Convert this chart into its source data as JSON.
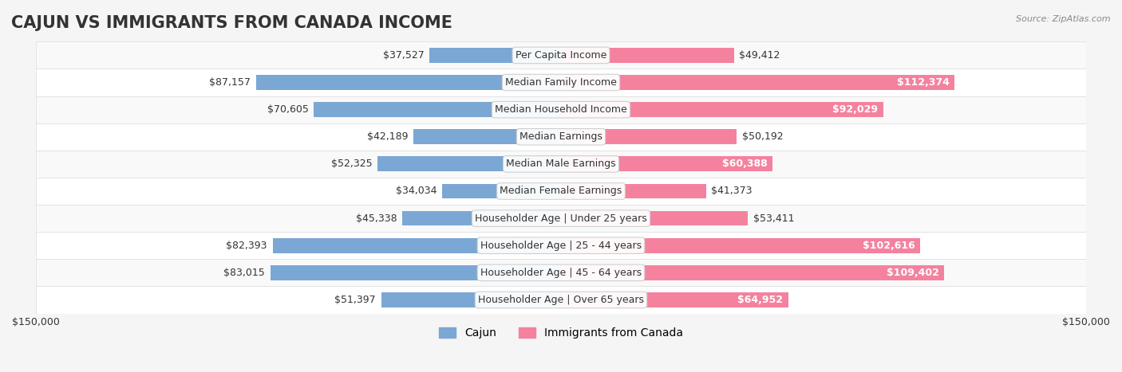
{
  "title": "CAJUN VS IMMIGRANTS FROM CANADA INCOME",
  "source": "Source: ZipAtlas.com",
  "categories": [
    "Per Capita Income",
    "Median Family Income",
    "Median Household Income",
    "Median Earnings",
    "Median Male Earnings",
    "Median Female Earnings",
    "Householder Age | Under 25 years",
    "Householder Age | 25 - 44 years",
    "Householder Age | 45 - 64 years",
    "Householder Age | Over 65 years"
  ],
  "cajun_values": [
    37527,
    87157,
    70605,
    42189,
    52325,
    34034,
    45338,
    82393,
    83015,
    51397
  ],
  "canada_values": [
    49412,
    112374,
    92029,
    50192,
    60388,
    41373,
    53411,
    102616,
    109402,
    64952
  ],
  "cajun_labels": [
    "$37,527",
    "$87,157",
    "$70,605",
    "$42,189",
    "$52,325",
    "$34,034",
    "$45,338",
    "$82,393",
    "$83,015",
    "$51,397"
  ],
  "canada_labels": [
    "$49,412",
    "$112,374",
    "$92,029",
    "$50,192",
    "$60,388",
    "$41,373",
    "$53,411",
    "$102,616",
    "$109,402",
    "$64,952"
  ],
  "cajun_color": "#7ba7d4",
  "canada_color": "#f4829e",
  "cajun_color_dark": "#5a8fc4",
  "canada_color_dark": "#f06090",
  "max_value": 150000,
  "bar_height": 0.55,
  "background_color": "#f5f5f5",
  "row_bg_light": "#f9f9f9",
  "row_bg_white": "#ffffff",
  "title_fontsize": 15,
  "label_fontsize": 9,
  "category_fontsize": 9,
  "axis_label_fontsize": 9,
  "legend_fontsize": 10
}
